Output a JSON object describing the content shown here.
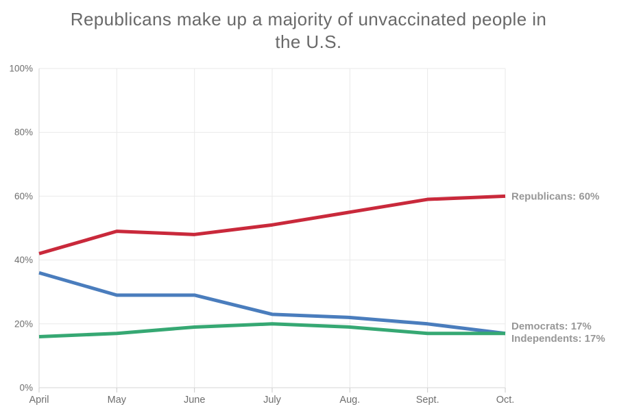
{
  "title": {
    "text": "Republicans make up a majority of unvaccinated people in the U.S.",
    "lines": [
      "Republicans make up a majority of unvaccinated people in",
      "the U.S."
    ]
  },
  "chart_data": {
    "type": "line",
    "title": "Republicans make up a majority of unvaccinated people in the U.S.",
    "categories": [
      "April",
      "May",
      "June",
      "July",
      "Aug.",
      "Sept.",
      "Oct."
    ],
    "series": [
      {
        "name": "Republicans",
        "color": "#c9293b",
        "values": [
          42,
          49,
          48,
          51,
          55,
          59,
          60
        ],
        "end_label": "Republicans: 60%",
        "label_dy": 0
      },
      {
        "name": "Democrats",
        "color": "#4a7dbd",
        "values": [
          36,
          29,
          29,
          23,
          22,
          20,
          17
        ],
        "end_label": "Democrats: 17%",
        "label_dy": -11
      },
      {
        "name": "Independents",
        "color": "#36a873",
        "values": [
          16,
          17,
          19,
          20,
          19,
          17,
          17
        ],
        "end_label": "Independents: 17%",
        "label_dy": 7
      }
    ],
    "y_ticks": [
      {
        "value": 0,
        "label": "0%"
      },
      {
        "value": 20,
        "label": "20%"
      },
      {
        "value": 40,
        "label": "40%"
      },
      {
        "value": 60,
        "label": "60%"
      },
      {
        "value": 80,
        "label": "80%"
      },
      {
        "value": 100,
        "label": "100%"
      }
    ],
    "ylim": [
      0,
      100
    ],
    "xlabel": "",
    "ylabel": "",
    "grid": true,
    "legend_position": "end-labels-right"
  },
  "colors": {
    "title_text": "#696969",
    "axis_label": "#6e6e6e",
    "end_label": "#979797",
    "gridline": "#e9e9e9",
    "axis_line": "#d5d5d5",
    "tick": "#c8c8c8",
    "background": "#ffffff"
  }
}
